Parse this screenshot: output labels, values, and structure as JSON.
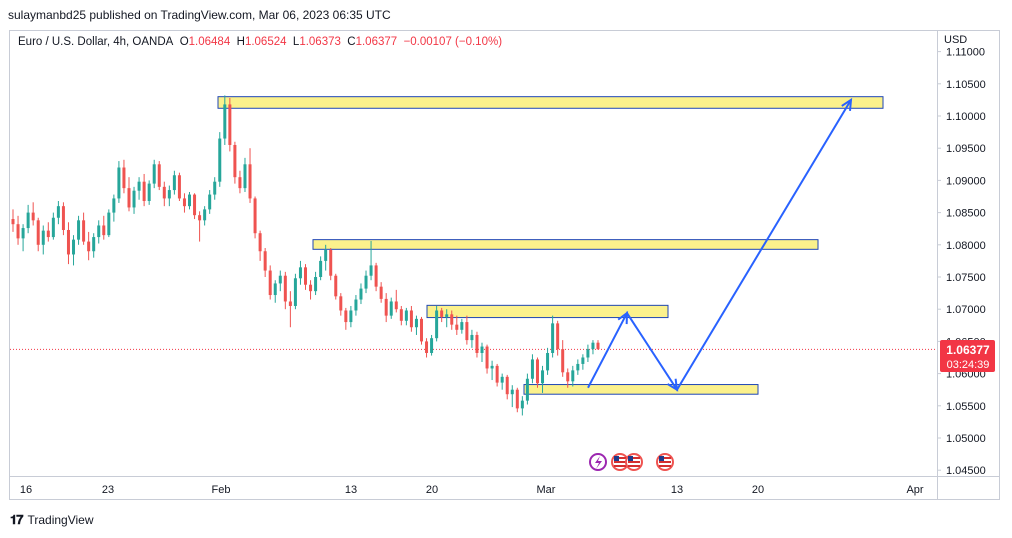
{
  "header": {
    "published": "sulaymanbd25 published on TradingView.com, Mar 06, 2023 06:35 UTC"
  },
  "symbol": {
    "name": "Euro / U.S. Dollar, 4h, OANDA",
    "o_label": "O",
    "o": "1.06484",
    "h_label": "H",
    "h": "1.06524",
    "l_label": "L",
    "l": "1.06373",
    "c_label": "C",
    "c": "1.06377",
    "change": "−0.00107 (−0.10%)"
  },
  "price_axis": {
    "currency": "USD",
    "ticks": [
      "1.11000",
      "1.10500",
      "1.10000",
      "1.09500",
      "1.09000",
      "1.08500",
      "1.08000",
      "1.07500",
      "1.07000",
      "1.06500",
      "1.06000",
      "1.05500",
      "1.05000",
      "1.04500"
    ]
  },
  "time_axis": {
    "ticks": [
      "16",
      "23",
      "Feb",
      "13",
      "20",
      "Mar",
      "13",
      "20",
      "Apr"
    ]
  },
  "current_price": {
    "price": "1.06377",
    "countdown": "03:24:39",
    "color": "#f23645"
  },
  "footer": {
    "brand": "TradingView"
  },
  "chart_data": {
    "type": "candlestick",
    "symbol": "EURUSD",
    "timeframe": "4h",
    "ylim": [
      1.044,
      1.1155
    ],
    "grid": false,
    "candles": [
      [
        1.084,
        1.0855,
        1.082,
        1.0832
      ],
      [
        1.0832,
        1.0845,
        1.08,
        1.081
      ],
      [
        1.081,
        1.0832,
        1.079,
        1.0826
      ],
      [
        1.0826,
        1.0862,
        1.0818,
        1.085
      ],
      [
        1.085,
        1.0866,
        1.083,
        1.0838
      ],
      [
        1.0838,
        1.0842,
        1.079,
        1.08
      ],
      [
        1.08,
        1.083,
        1.0785,
        1.0822
      ],
      [
        1.0822,
        1.0835,
        1.0805,
        1.0812
      ],
      [
        1.0812,
        1.085,
        1.0808,
        1.0842
      ],
      [
        1.0842,
        1.0868,
        1.0832,
        1.086
      ],
      [
        1.086,
        1.0866,
        1.0815,
        1.0823
      ],
      [
        1.0823,
        1.0835,
        1.077,
        1.0785
      ],
      [
        1.0785,
        1.0815,
        1.0768,
        1.0808
      ],
      [
        1.0808,
        1.0845,
        1.08,
        1.0838
      ],
      [
        1.0838,
        1.085,
        1.08,
        1.0805
      ],
      [
        1.0805,
        1.082,
        1.0776,
        1.079
      ],
      [
        1.079,
        1.0818,
        1.078,
        1.0812
      ],
      [
        1.0812,
        1.0838,
        1.0802,
        1.083
      ],
      [
        1.083,
        1.0845,
        1.0808,
        1.0815
      ],
      [
        1.0815,
        1.0855,
        1.0812,
        1.085
      ],
      [
        1.085,
        1.0878,
        1.0836,
        1.0872
      ],
      [
        1.0872,
        1.093,
        1.0865,
        1.092
      ],
      [
        1.092,
        1.0932,
        1.088,
        1.0888
      ],
      [
        1.0888,
        1.0905,
        1.0852,
        1.0858
      ],
      [
        1.0858,
        1.089,
        1.0848,
        1.0884
      ],
      [
        1.0884,
        1.0905,
        1.087,
        1.0898
      ],
      [
        1.0898,
        1.091,
        1.086,
        1.0868
      ],
      [
        1.0868,
        1.09,
        1.0862,
        1.0895
      ],
      [
        1.0895,
        1.0932,
        1.0888,
        1.0925
      ],
      [
        1.0925,
        1.093,
        1.0885,
        1.089
      ],
      [
        1.089,
        1.0898,
        1.086,
        1.0872
      ],
      [
        1.0872,
        1.0892,
        1.086,
        1.0885
      ],
      [
        1.0885,
        1.0915,
        1.0878,
        1.0908
      ],
      [
        1.0908,
        1.0912,
        1.0868,
        1.0872
      ],
      [
        1.0872,
        1.088,
        1.085,
        1.086
      ],
      [
        1.086,
        1.0882,
        1.0855,
        1.0878
      ],
      [
        1.0878,
        1.088,
        1.084,
        1.0846
      ],
      [
        1.0846,
        1.0852,
        1.0805,
        1.0838
      ],
      [
        1.0838,
        1.086,
        1.083,
        1.0855
      ],
      [
        1.0855,
        1.0885,
        1.0848,
        1.0878
      ],
      [
        1.0878,
        1.0905,
        1.087,
        1.0898
      ],
      [
        1.0898,
        1.0975,
        1.089,
        1.0965
      ],
      [
        1.0965,
        1.1032,
        1.0955,
        1.1018
      ],
      [
        1.1018,
        1.1028,
        1.0945,
        1.0955
      ],
      [
        1.0955,
        1.096,
        1.0895,
        1.0905
      ],
      [
        1.0905,
        1.0915,
        1.088,
        1.0888
      ],
      [
        1.0888,
        1.0935,
        1.0882,
        1.0925
      ],
      [
        1.0925,
        1.095,
        1.0865,
        1.0872
      ],
      [
        1.0872,
        1.0875,
        1.081,
        1.0818
      ],
      [
        1.0818,
        1.0822,
        1.0775,
        1.079
      ],
      [
        1.079,
        1.0795,
        1.075,
        1.076
      ],
      [
        1.076,
        1.0768,
        1.0715,
        1.0722
      ],
      [
        1.0722,
        1.0745,
        1.071,
        1.074
      ],
      [
        1.074,
        1.076,
        1.0728,
        1.0752
      ],
      [
        1.0752,
        1.0758,
        1.07,
        1.0712
      ],
      [
        1.0712,
        1.0728,
        1.0672,
        1.0705
      ],
      [
        1.0705,
        1.0755,
        1.07,
        1.0748
      ],
      [
        1.0748,
        1.0775,
        1.0738,
        1.0765
      ],
      [
        1.0765,
        1.077,
        1.073,
        1.0738
      ],
      [
        1.0738,
        1.0745,
        1.0715,
        1.0728
      ],
      [
        1.0728,
        1.0758,
        1.0722,
        1.075
      ],
      [
        1.075,
        1.0782,
        1.0745,
        1.0775
      ],
      [
        1.0775,
        1.08,
        1.076,
        1.0792
      ],
      [
        1.0792,
        1.0795,
        1.0745,
        1.0752
      ],
      [
        1.0752,
        1.0755,
        1.0715,
        1.072
      ],
      [
        1.072,
        1.0725,
        1.069,
        1.0698
      ],
      [
        1.0698,
        1.0702,
        1.0668,
        1.068
      ],
      [
        1.068,
        1.0705,
        1.0672,
        1.0698
      ],
      [
        1.0698,
        1.0722,
        1.069,
        1.0715
      ],
      [
        1.0715,
        1.074,
        1.0708,
        1.0732
      ],
      [
        1.0732,
        1.076,
        1.0725,
        1.0752
      ],
      [
        1.0752,
        1.0806,
        1.0745,
        1.0768
      ],
      [
        1.0768,
        1.0772,
        1.0728,
        1.0735
      ],
      [
        1.0735,
        1.0742,
        1.071,
        1.0716
      ],
      [
        1.0716,
        1.0725,
        1.068,
        1.069
      ],
      [
        1.069,
        1.0718,
        1.0685,
        1.0712
      ],
      [
        1.0712,
        1.073,
        1.0695,
        1.07
      ],
      [
        1.07,
        1.0705,
        1.0675,
        1.0682
      ],
      [
        1.0682,
        1.0702,
        1.0675,
        1.0698
      ],
      [
        1.0698,
        1.0705,
        1.0665,
        1.0672
      ],
      [
        1.0672,
        1.069,
        1.066,
        1.0685
      ],
      [
        1.0685,
        1.0688,
        1.0645,
        1.065
      ],
      [
        1.065,
        1.0655,
        1.0625,
        1.0632
      ],
      [
        1.0632,
        1.066,
        1.0628,
        1.0655
      ],
      [
        1.0655,
        1.0705,
        1.065,
        1.0698
      ],
      [
        1.0698,
        1.0702,
        1.068,
        1.0688
      ],
      [
        1.0688,
        1.07,
        1.0672,
        1.0692
      ],
      [
        1.0692,
        1.0698,
        1.0668,
        1.0676
      ],
      [
        1.0676,
        1.069,
        1.066,
        1.0668
      ],
      [
        1.0668,
        1.0685,
        1.0662,
        1.068
      ],
      [
        1.068,
        1.069,
        1.0645,
        1.0652
      ],
      [
        1.0652,
        1.0668,
        1.064,
        1.066
      ],
      [
        1.066,
        1.0665,
        1.0625,
        1.0632
      ],
      [
        1.0632,
        1.0648,
        1.0618,
        1.0642
      ],
      [
        1.0642,
        1.0645,
        1.06,
        1.0608
      ],
      [
        1.0608,
        1.062,
        1.059,
        1.0612
      ],
      [
        1.0612,
        1.0615,
        1.058,
        1.0586
      ],
      [
        1.0586,
        1.06,
        1.0575,
        1.0595
      ],
      [
        1.0595,
        1.0598,
        1.056,
        1.0568
      ],
      [
        1.0568,
        1.0582,
        1.0548,
        1.0575
      ],
      [
        1.0575,
        1.0578,
        1.054,
        1.0546
      ],
      [
        1.0546,
        1.0565,
        1.0535,
        1.0558
      ],
      [
        1.0558,
        1.06,
        1.0552,
        1.0592
      ],
      [
        1.0592,
        1.063,
        1.0585,
        1.0622
      ],
      [
        1.0622,
        1.0625,
        1.0578,
        1.0585
      ],
      [
        1.0585,
        1.0612,
        1.057,
        1.0605
      ],
      [
        1.0605,
        1.064,
        1.0598,
        1.0632
      ],
      [
        1.0632,
        1.069,
        1.0625,
        1.0678
      ],
      [
        1.0678,
        1.0682,
        1.0628,
        1.0638
      ],
      [
        1.0638,
        1.0652,
        1.0595,
        1.0602
      ],
      [
        1.0602,
        1.0608,
        1.0578,
        1.0588
      ],
      [
        1.0588,
        1.0612,
        1.058,
        1.0605
      ],
      [
        1.0605,
        1.0622,
        1.0598,
        1.0615
      ],
      [
        1.0615,
        1.063,
        1.0606,
        1.0625
      ],
      [
        1.0625,
        1.0645,
        1.0618,
        1.0638
      ],
      [
        1.0638,
        1.0652,
        1.063,
        1.0648
      ],
      [
        1.0648,
        1.0652,
        1.0637,
        1.0638
      ]
    ],
    "zones": [
      {
        "low": 1.1012,
        "high": 1.103
      },
      {
        "low": 1.0793,
        "high": 1.0808
      },
      {
        "low": 1.0687,
        "high": 1.0706
      },
      {
        "low": 1.0568,
        "high": 1.0583
      }
    ],
    "projection": [
      {
        "date": "2023-03-06",
        "price": 1.0578
      },
      {
        "date": "2023-03-09",
        "price": 1.0694
      },
      {
        "date": "2023-03-13",
        "price": 1.0575
      },
      {
        "date": "2023-03-27",
        "price": 1.1025
      }
    ],
    "colors": {
      "up": "#26a69a",
      "down": "#ef5350",
      "zone_fill": "#fbf18c",
      "zone_border": "#1f46b4",
      "projection": "#2962ff"
    }
  }
}
